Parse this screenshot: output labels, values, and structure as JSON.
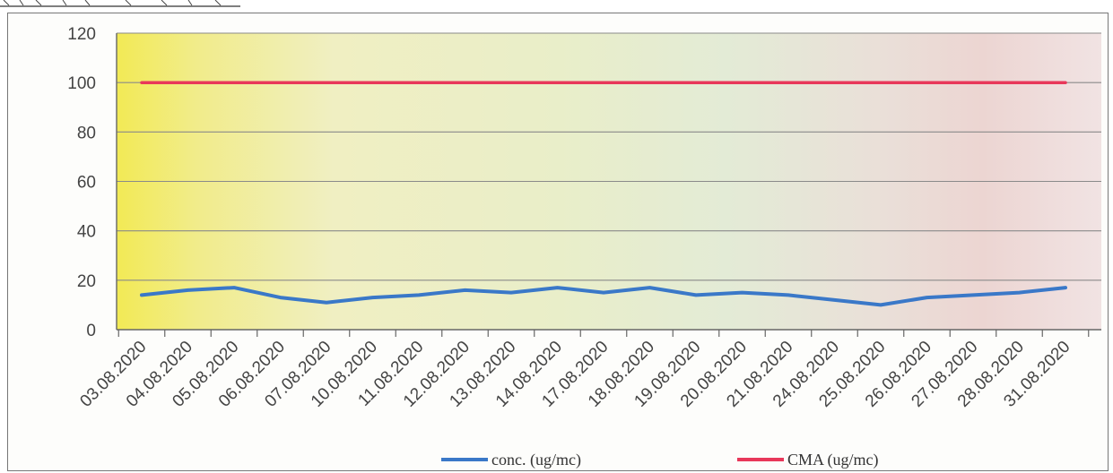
{
  "chart_data": {
    "type": "line",
    "categories": [
      "03.08.2020",
      "04.08.2020",
      "05.08.2020",
      "06.08.2020",
      "07.08.2020",
      "10.08.2020",
      "11.08.2020",
      "12.08.2020",
      "13.08.2020",
      "14.08.2020",
      "17.08.2020",
      "18.08.2020",
      "19.08.2020",
      "20.08.2020",
      "21.08.2020",
      "24.08.2020",
      "25.08.2020",
      "26.08.2020",
      "27.08.2020",
      "28.08.2020",
      "31.08.2020"
    ],
    "series": [
      {
        "name": "conc. (ug/mc)",
        "color": "#3a78c8",
        "values": [
          14,
          16,
          17,
          13,
          11,
          13,
          14,
          16,
          15,
          17,
          15,
          17,
          14,
          15,
          14,
          12,
          10,
          13,
          14,
          15,
          17
        ]
      },
      {
        "name": "CMA (ug/mc)",
        "color": "#e8385a",
        "values": [
          100,
          100,
          100,
          100,
          100,
          100,
          100,
          100,
          100,
          100,
          100,
          100,
          100,
          100,
          100,
          100,
          100,
          100,
          100,
          100,
          100
        ]
      }
    ],
    "yticks": [
      "0",
      "20",
      "40",
      "60",
      "80",
      "100",
      "120"
    ],
    "ylim": [
      0,
      120
    ],
    "grid": true,
    "legend_position": "bottom"
  }
}
